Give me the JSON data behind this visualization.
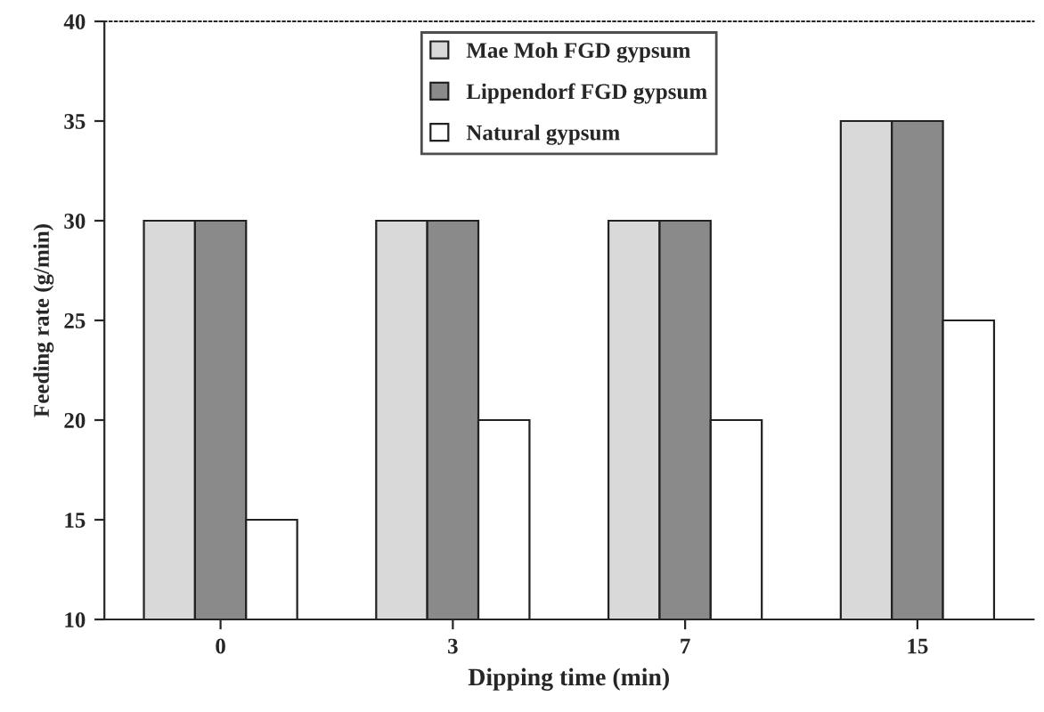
{
  "chart_data": {
    "type": "bar",
    "xlabel": "Dipping time (min)",
    "ylabel": "Feeding rate (g/min)",
    "categories": [
      "0",
      "3",
      "7",
      "15"
    ],
    "series": [
      {
        "name": "Mae Moh FGD gypsum",
        "color": "#d9d9d9",
        "values": [
          30,
          30,
          30,
          35
        ]
      },
      {
        "name": "Lippendorf FGD gypsum",
        "color": "#8a8a8a",
        "values": [
          30,
          30,
          30,
          35
        ]
      },
      {
        "name": "Natural gypsum",
        "color": "#ffffff",
        "values": [
          15,
          20,
          20,
          25
        ]
      }
    ],
    "ylim": [
      10,
      40
    ],
    "yticks": [
      10,
      15,
      20,
      25,
      30,
      35,
      40
    ],
    "legend": "top"
  }
}
